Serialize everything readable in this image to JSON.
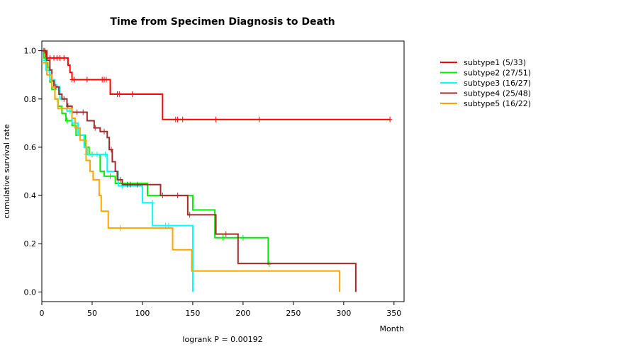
{
  "chart_data": {
    "type": "line",
    "title": "Time from Specimen Diagnosis to Death",
    "xlabel": "Month",
    "ylabel": "cumulative survival rate",
    "annotation": "logrank P = 0.00192",
    "xlim": [
      0,
      360
    ],
    "ylim": [
      -0.04,
      1.04
    ],
    "x_ticks": [
      0,
      50,
      100,
      150,
      200,
      250,
      300,
      350
    ],
    "y_ticks": [
      0.0,
      0.2,
      0.4,
      0.6,
      0.8,
      1.0
    ],
    "y_tick_labels": [
      "0.0",
      "0.2",
      "0.4",
      "0.6",
      "0.8",
      "1.0"
    ],
    "legend_position": "top-right outside",
    "series": [
      {
        "name": "subtype1 (5/33)",
        "color": "#ff0000",
        "steps": [
          [
            0,
            1.0
          ],
          [
            4,
            0.97
          ],
          [
            26,
            0.94
          ],
          [
            28,
            0.91
          ],
          [
            30,
            0.88
          ],
          [
            68,
            0.82
          ],
          [
            120,
            0.715
          ],
          [
            346,
            0.715
          ]
        ],
        "censors": [
          [
            2,
            1.0
          ],
          [
            5,
            0.97
          ],
          [
            8,
            0.97
          ],
          [
            12,
            0.97
          ],
          [
            15,
            0.97
          ],
          [
            18,
            0.97
          ],
          [
            22,
            0.97
          ],
          [
            30,
            0.88
          ],
          [
            32,
            0.88
          ],
          [
            45,
            0.88
          ],
          [
            60,
            0.88
          ],
          [
            62,
            0.88
          ],
          [
            64,
            0.88
          ],
          [
            75,
            0.82
          ],
          [
            77,
            0.82
          ],
          [
            90,
            0.82
          ],
          [
            133,
            0.715
          ],
          [
            135,
            0.715
          ],
          [
            140,
            0.715
          ],
          [
            173,
            0.715
          ],
          [
            216,
            0.715
          ],
          [
            346,
            0.715
          ]
        ]
      },
      {
        "name": "subtype2 (27/51)",
        "color": "#00ee00",
        "steps": [
          [
            0,
            1.0
          ],
          [
            2,
            0.97
          ],
          [
            4,
            0.95
          ],
          [
            6,
            0.93
          ],
          [
            8,
            0.87
          ],
          [
            10,
            0.84
          ],
          [
            13,
            0.8
          ],
          [
            16,
            0.77
          ],
          [
            20,
            0.74
          ],
          [
            24,
            0.71
          ],
          [
            30,
            0.69
          ],
          [
            34,
            0.65
          ],
          [
            43,
            0.6
          ],
          [
            47,
            0.57
          ],
          [
            58,
            0.5
          ],
          [
            62,
            0.48
          ],
          [
            73,
            0.45
          ],
          [
            105,
            0.4
          ],
          [
            150,
            0.34
          ],
          [
            172,
            0.225
          ],
          [
            225,
            0.115
          ],
          [
            226,
            0.115
          ]
        ],
        "censors": [
          [
            25,
            0.71
          ],
          [
            50,
            0.57
          ],
          [
            68,
            0.48
          ],
          [
            80,
            0.45
          ],
          [
            180,
            0.225
          ],
          [
            200,
            0.225
          ],
          [
            226,
            0.115
          ]
        ]
      },
      {
        "name": "subtype3 (16/27)",
        "color": "#00ffff",
        "steps": [
          [
            0,
            0.96
          ],
          [
            4,
            0.92
          ],
          [
            8,
            0.88
          ],
          [
            13,
            0.85
          ],
          [
            18,
            0.8
          ],
          [
            25,
            0.75
          ],
          [
            30,
            0.7
          ],
          [
            36,
            0.65
          ],
          [
            42,
            0.6
          ],
          [
            45,
            0.57
          ],
          [
            65,
            0.5
          ],
          [
            76,
            0.44
          ],
          [
            100,
            0.37
          ],
          [
            110,
            0.275
          ],
          [
            150,
            0.0
          ]
        ],
        "censors": [
          [
            7,
            0.92
          ],
          [
            15,
            0.85
          ],
          [
            20,
            0.8
          ],
          [
            28,
            0.75
          ],
          [
            44,
            0.57
          ],
          [
            55,
            0.57
          ],
          [
            63,
            0.57
          ],
          [
            80,
            0.44
          ],
          [
            110,
            0.37
          ],
          [
            123,
            0.275
          ],
          [
            126,
            0.275
          ]
        ]
      },
      {
        "name": "subtype4 (25/48)",
        "color": "#a52a2a",
        "steps": [
          [
            0,
            1.0
          ],
          [
            5,
            0.96
          ],
          [
            8,
            0.92
          ],
          [
            10,
            0.875
          ],
          [
            12,
            0.85
          ],
          [
            17,
            0.82
          ],
          [
            20,
            0.8
          ],
          [
            25,
            0.77
          ],
          [
            30,
            0.745
          ],
          [
            45,
            0.71
          ],
          [
            52,
            0.68
          ],
          [
            58,
            0.665
          ],
          [
            65,
            0.64
          ],
          [
            67,
            0.59
          ],
          [
            70,
            0.54
          ],
          [
            73,
            0.5
          ],
          [
            75,
            0.465
          ],
          [
            80,
            0.445
          ],
          [
            118,
            0.4
          ],
          [
            145,
            0.32
          ],
          [
            173,
            0.24
          ],
          [
            195,
            0.118
          ],
          [
            312,
            0.0
          ]
        ],
        "censors": [
          [
            3,
            1.0
          ],
          [
            14,
            0.85
          ],
          [
            22,
            0.8
          ],
          [
            26,
            0.77
          ],
          [
            35,
            0.745
          ],
          [
            41,
            0.745
          ],
          [
            53,
            0.68
          ],
          [
            62,
            0.665
          ],
          [
            69,
            0.59
          ],
          [
            78,
            0.465
          ],
          [
            85,
            0.445
          ],
          [
            88,
            0.445
          ],
          [
            95,
            0.445
          ],
          [
            120,
            0.4
          ],
          [
            135,
            0.4
          ],
          [
            147,
            0.32
          ],
          [
            183,
            0.24
          ]
        ]
      },
      {
        "name": "subtype5 (16/22)",
        "color": "#ffa500",
        "steps": [
          [
            0,
            0.95
          ],
          [
            5,
            0.9
          ],
          [
            10,
            0.85
          ],
          [
            13,
            0.8
          ],
          [
            16,
            0.76
          ],
          [
            30,
            0.72
          ],
          [
            33,
            0.68
          ],
          [
            38,
            0.63
          ],
          [
            44,
            0.545
          ],
          [
            48,
            0.5
          ],
          [
            51,
            0.465
          ],
          [
            57,
            0.4
          ],
          [
            59,
            0.335
          ],
          [
            66,
            0.265
          ],
          [
            130,
            0.175
          ],
          [
            149,
            0.087
          ],
          [
            296,
            0.0
          ]
        ],
        "censors": [
          [
            78,
            0.265
          ]
        ]
      }
    ]
  }
}
